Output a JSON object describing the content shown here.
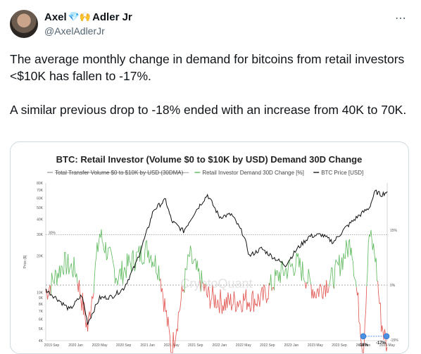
{
  "tweet": {
    "author_first": "Axel",
    "author_emoji": "💎🙌",
    "author_last": "Adler Jr",
    "handle": "@AxelAdlerJr",
    "more_icon": "⋯",
    "paragraph_1": "The average monthly change in demand for bitcoins from retail investors <$10K has fallen to -17%.",
    "paragraph_2": "A similar previous drop to -18% ended with an increase from 40K to 70K."
  },
  "chart_data": {
    "type": "line",
    "title": "BTC: Retail Investor (Volume $0 to $10K by USD) Demand 30D Change",
    "legend": [
      {
        "label": "Total Transfer Volume $0 to $10K by USD (30DMA)",
        "color": "#999999",
        "struck": true
      },
      {
        "label": "Retail Investor Demand 30D Change [%]",
        "color": "#4caf50"
      },
      {
        "label": "BTC Price [USD]",
        "color": "#000000"
      }
    ],
    "ylabel_left": "Price ($)",
    "y_left_ticks": [
      "80K",
      "70K",
      "60K",
      "50K",
      "40K",
      "30K",
      "20K",
      "10K",
      "9K",
      "8K",
      "7K",
      "6K",
      "5K",
      "4K"
    ],
    "y_right_ticks": [
      "15%",
      "0%",
      "-15%"
    ],
    "x_ticks": [
      "2019 Sep",
      "2020 Jan",
      "2020 May",
      "2020 Sep",
      "2021 Jan",
      "2021 May",
      "2021 Sep",
      "2022 Jan",
      "2022 May",
      "2022 Sep",
      "2023 Jan",
      "2023 May",
      "2023 Sep",
      "2024 Jan",
      "2024 May"
    ],
    "ref_line_left_label": "30%",
    "watermark": "CryptoQuant",
    "annotations": [
      "-18%",
      "-17%"
    ],
    "btc_price": {
      "x": [
        "2019-08",
        "2019-10",
        "2019-12",
        "2020-02",
        "2020-03",
        "2020-05",
        "2020-07",
        "2020-09",
        "2020-11",
        "2021-01",
        "2021-02",
        "2021-04",
        "2021-05",
        "2021-07",
        "2021-09",
        "2021-11",
        "2022-01",
        "2022-03",
        "2022-05",
        "2022-06",
        "2022-08",
        "2022-10",
        "2022-12",
        "2023-02",
        "2023-04",
        "2023-06",
        "2023-08",
        "2023-10",
        "2023-12",
        "2024-02",
        "2024-03",
        "2024-04",
        "2024-05"
      ],
      "y": [
        10500,
        8800,
        7200,
        9500,
        5600,
        9000,
        9200,
        10800,
        17000,
        33000,
        48000,
        58000,
        39000,
        32000,
        47000,
        64000,
        42000,
        44000,
        30000,
        20000,
        23000,
        19500,
        16800,
        23000,
        29000,
        30000,
        26000,
        34000,
        42000,
        50000,
        68000,
        64000,
        68000
      ]
    },
    "demand_change": {
      "x": [
        "2019-08",
        "2019-11",
        "2020-01",
        "2020-03",
        "2020-05",
        "2020-08",
        "2020-10",
        "2021-01",
        "2021-03",
        "2021-05",
        "2021-08",
        "2021-11",
        "2022-02",
        "2022-05",
        "2022-08",
        "2022-11",
        "2023-02",
        "2023-05",
        "2023-08",
        "2023-11",
        "2024-01",
        "2024-02",
        "2024-03",
        "2024-04",
        "2024-05"
      ],
      "y": [
        -2,
        6,
        4,
        -12,
        14,
        2,
        6,
        10,
        4,
        -18,
        8,
        -3,
        -5,
        -4,
        -4,
        3,
        6,
        -2,
        2,
        12,
        -18,
        14,
        8,
        -10,
        -17
      ]
    }
  }
}
